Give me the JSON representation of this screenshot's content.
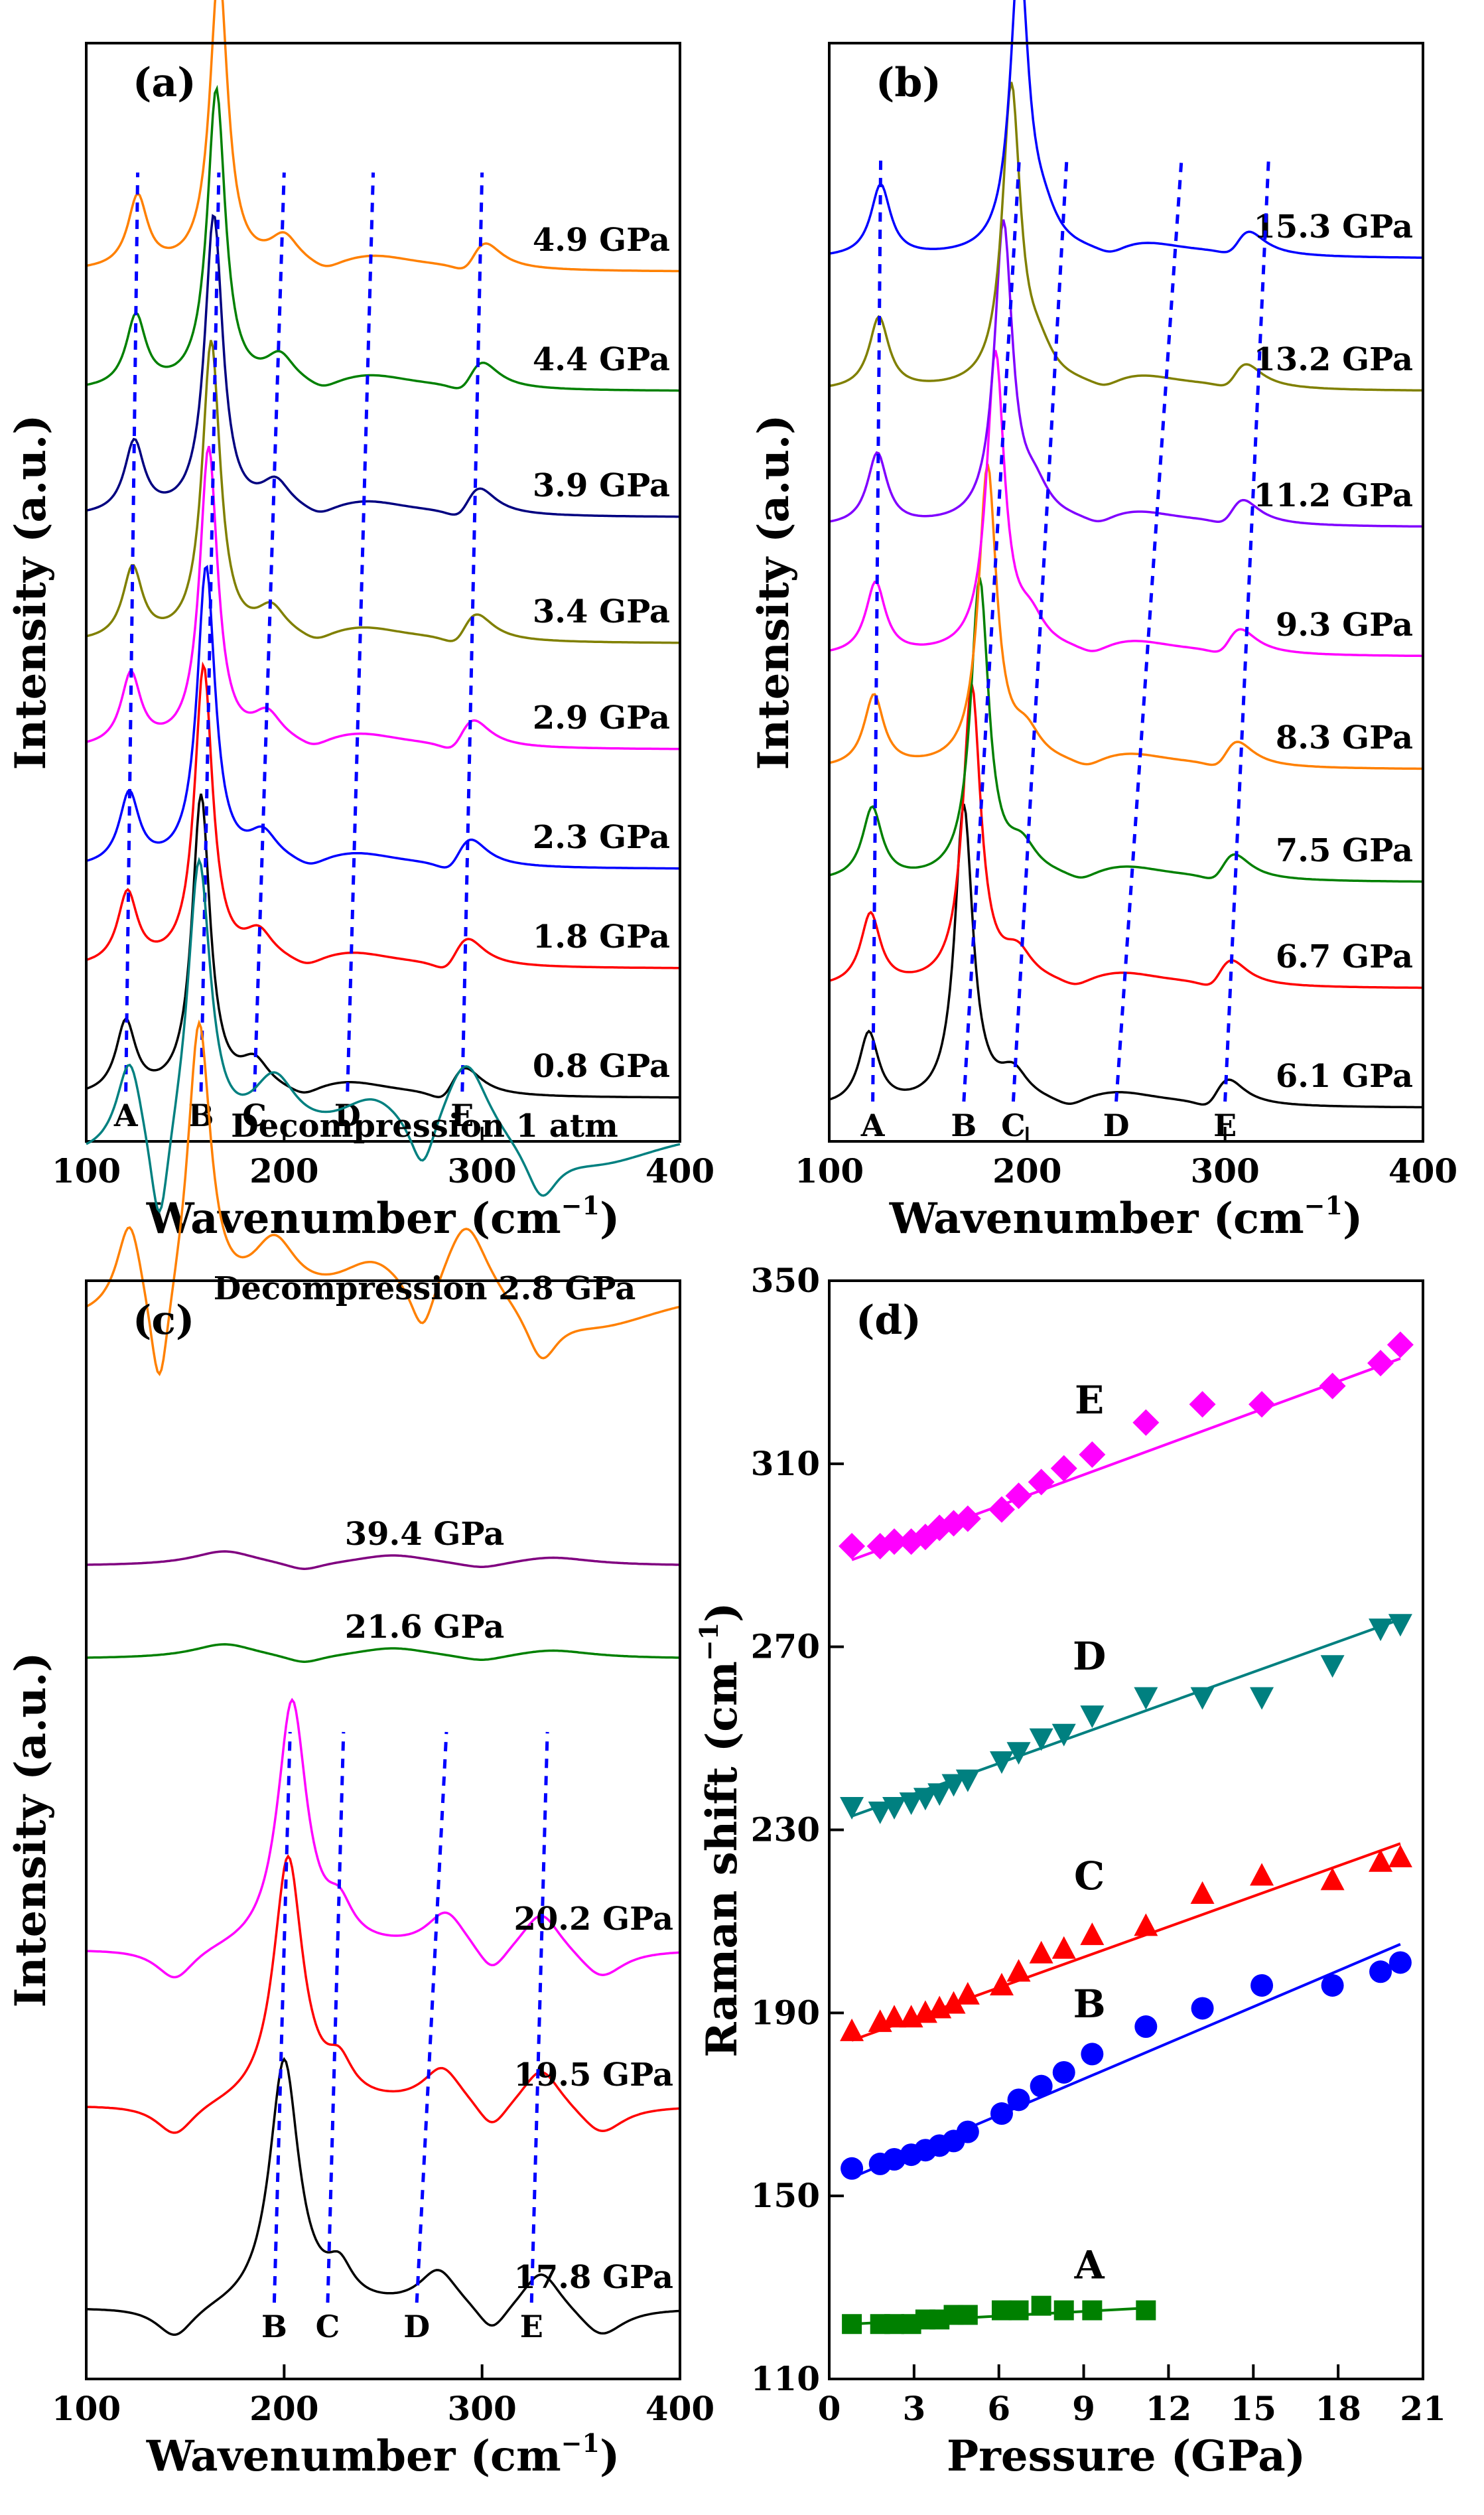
{
  "chart_data": [
    {
      "id": "a",
      "type": "line",
      "panel_label": "(a)",
      "xlabel": "Wavenumber (cm",
      "xlabel_sup": "−1",
      "ylabel": "Intensity (a.u.)",
      "xlim": [
        100,
        400
      ],
      "xticks": [
        "100",
        "200",
        "300",
        "400"
      ],
      "peak_labels": [
        {
          "label": "A",
          "x": 120
        },
        {
          "label": "B",
          "x": 158
        },
        {
          "label": "C",
          "x": 185
        },
        {
          "label": "D",
          "x": 232
        },
        {
          "label": "E",
          "x": 290
        }
      ],
      "series": [
        {
          "name": "0.8 GPa",
          "color": "#000000"
        },
        {
          "name": "1.8 GPa",
          "color": "#ff0000"
        },
        {
          "name": "2.3 GPa",
          "color": "#0000ff"
        },
        {
          "name": "2.9 GPa",
          "color": "#ff00ff"
        },
        {
          "name": "3.4 GPa",
          "color": "#808000"
        },
        {
          "name": "3.9 GPa",
          "color": "#000080"
        },
        {
          "name": "4.4 GPa",
          "color": "#008000"
        },
        {
          "name": "4.9 GPa",
          "color": "#ff8000"
        }
      ],
      "peak_shift": [
        {
          "peak": "A",
          "from": 120,
          "to": 126
        },
        {
          "peak": "B",
          "from": 158,
          "to": 167
        },
        {
          "peak": "C",
          "from": 185,
          "to": 200
        },
        {
          "peak": "D",
          "from": 232,
          "to": 245
        },
        {
          "peak": "E",
          "from": 290,
          "to": 300
        }
      ]
    },
    {
      "id": "b",
      "type": "line",
      "panel_label": "(b)",
      "xlabel": "Wavenumber (cm",
      "xlabel_sup": "−1",
      "ylabel": "Intensity (a.u.)",
      "xlim": [
        100,
        400
      ],
      "xticks": [
        "100",
        "200",
        "300",
        "400"
      ],
      "peak_labels": [
        {
          "label": "A",
          "x": 122
        },
        {
          "label": "B",
          "x": 168
        },
        {
          "label": "C",
          "x": 193
        },
        {
          "label": "D",
          "x": 245
        },
        {
          "label": "E",
          "x": 300
        }
      ],
      "series": [
        {
          "name": "6.1 GPa",
          "color": "#000000"
        },
        {
          "name": "6.7 GPa",
          "color": "#ff0000"
        },
        {
          "name": "7.5 GPa",
          "color": "#008000"
        },
        {
          "name": "8.3 GPa",
          "color": "#ff8000"
        },
        {
          "name": "9.3 GPa",
          "color": "#ff00ff"
        },
        {
          "name": "11.2 GPa",
          "color": "#8000ff"
        },
        {
          "name": "13.2 GPa",
          "color": "#808000"
        },
        {
          "name": "15.3 GPa",
          "color": "#0000ff"
        }
      ],
      "peak_shift": [
        {
          "peak": "A",
          "from": 122,
          "to": 126
        },
        {
          "peak": "B",
          "from": 168,
          "to": 196
        },
        {
          "peak": "C",
          "from": 193,
          "to": 220
        },
        {
          "peak": "D",
          "from": 245,
          "to": 278
        },
        {
          "peak": "E",
          "from": 300,
          "to": 322
        }
      ]
    },
    {
      "id": "c",
      "type": "line",
      "panel_label": "(c)",
      "xlabel": "Wavenumber (cm",
      "xlabel_sup": "−1",
      "ylabel": "Intensity (a.u.)",
      "xlim": [
        100,
        400
      ],
      "xticks": [
        "100",
        "200",
        "300",
        "400"
      ],
      "peak_labels": [
        {
          "label": "B",
          "x": 195
        },
        {
          "label": "C",
          "x": 222
        },
        {
          "label": "D",
          "x": 267
        },
        {
          "label": "E",
          "x": 325
        }
      ],
      "series": [
        {
          "name": "17.8 GPa",
          "color": "#000000"
        },
        {
          "name": "19.5 GPa",
          "color": "#ff0000"
        },
        {
          "name": "20.2 GPa",
          "color": "#ff00ff"
        },
        {
          "name": "21.6 GPa",
          "color": "#008000"
        },
        {
          "name": "39.4 GPa",
          "color": "#800080"
        },
        {
          "name": "Decompression 2.8 GPa",
          "color": "#ff8000"
        },
        {
          "name": "Decompression 1 atm",
          "color": "#008080"
        }
      ],
      "peak_shift": [
        {
          "peak": "B",
          "from": 195,
          "to": 203
        },
        {
          "peak": "C",
          "from": 222,
          "to": 230
        },
        {
          "peak": "D",
          "from": 267,
          "to": 282
        },
        {
          "peak": "E",
          "from": 325,
          "to": 333
        }
      ]
    },
    {
      "id": "d",
      "type": "scatter",
      "panel_label": "(d)",
      "xlabel": "Pressure (GPa)",
      "ylabel": "Raman shift (cm",
      "ylabel_sup": "−1",
      "xlim": [
        0,
        21
      ],
      "ylim": [
        110,
        350
      ],
      "xticks": [
        "0",
        "3",
        "6",
        "9",
        "12",
        "15",
        "18",
        "21"
      ],
      "yticks": [
        "110",
        "150",
        "190",
        "230",
        "270",
        "310",
        "350"
      ],
      "series": [
        {
          "name": "A",
          "marker": "square",
          "color": "#008000",
          "x": [
            0.8,
            1.8,
            2.3,
            2.9,
            3.4,
            3.9,
            4.4,
            4.9,
            6.1,
            6.7,
            7.5,
            8.3,
            9.3,
            11.2
          ],
          "y": [
            122,
            122,
            122,
            122,
            123,
            123,
            124,
            124,
            125,
            125,
            126,
            125,
            125,
            125
          ],
          "fit": [
            [
              0.8,
              122
            ],
            [
              11.2,
              125.5
            ]
          ]
        },
        {
          "name": "B",
          "marker": "circle",
          "color": "#0000ff",
          "x": [
            0.8,
            1.8,
            2.3,
            2.9,
            3.4,
            3.9,
            4.4,
            4.9,
            6.1,
            6.7,
            7.5,
            8.3,
            9.3,
            11.2,
            13.2,
            15.3,
            17.8,
            19.5,
            20.2
          ],
          "y": [
            156,
            157,
            158,
            159,
            160,
            161,
            162,
            164,
            168,
            171,
            174,
            177,
            181,
            187,
            191,
            196,
            196,
            199,
            201
          ],
          "fit": [
            [
              0.8,
              154
            ],
            [
              20.2,
              205
            ]
          ]
        },
        {
          "name": "C",
          "marker": "triangle-up",
          "color": "#ff0000",
          "x": [
            0.8,
            1.8,
            2.3,
            2.9,
            3.4,
            3.9,
            4.4,
            4.9,
            6.1,
            6.7,
            7.5,
            8.3,
            9.3,
            11.2,
            13.2,
            15.3,
            17.8,
            19.5,
            20.2
          ],
          "y": [
            186,
            188,
            189,
            189,
            190,
            191,
            192,
            194,
            196,
            199,
            203,
            204,
            207,
            209,
            216,
            220,
            219,
            223,
            224
          ],
          "fit": [
            [
              0.8,
              184
            ],
            [
              20.2,
              227
            ]
          ]
        },
        {
          "name": "D",
          "marker": "triangle-down",
          "color": "#008080",
          "x": [
            0.8,
            1.8,
            2.3,
            2.9,
            3.4,
            3.9,
            4.4,
            4.9,
            6.1,
            6.7,
            7.5,
            8.3,
            9.3,
            11.2,
            13.2,
            15.3,
            17.8,
            19.5,
            20.2
          ],
          "y": [
            235,
            234,
            235,
            236,
            237,
            238,
            240,
            241,
            245,
            247,
            250,
            251,
            255,
            259,
            259,
            259,
            266,
            274,
            275
          ],
          "fit": [
            [
              0.8,
              233
            ],
            [
              20.2,
              276
            ]
          ]
        },
        {
          "name": "E",
          "marker": "diamond",
          "color": "#ff00ff",
          "x": [
            0.8,
            1.8,
            2.3,
            2.9,
            3.4,
            3.9,
            4.4,
            4.9,
            6.1,
            6.7,
            7.5,
            8.3,
            9.3,
            11.2,
            13.2,
            15.3,
            17.8,
            19.5,
            20.2
          ],
          "y": [
            292,
            292,
            293,
            293,
            294,
            296,
            297,
            298,
            300,
            303,
            306,
            309,
            312,
            319,
            323,
            323,
            327,
            332,
            336
          ],
          "fit": [
            [
              0.8,
              289
            ],
            [
              20.2,
              333
            ]
          ]
        }
      ]
    }
  ]
}
